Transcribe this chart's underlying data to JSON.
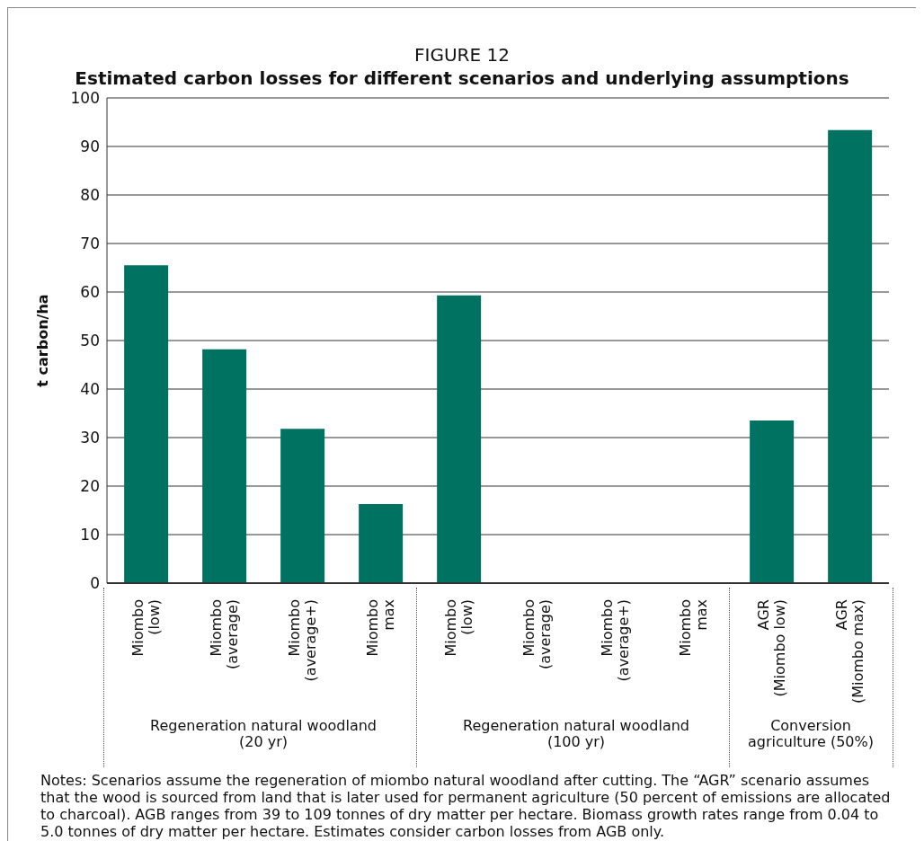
{
  "chart_data": {
    "type": "bar",
    "title": "FIGURE 12",
    "subtitle": "Estimated carbon losses for different scenarios and underlying assumptions",
    "ylabel": "t carbon/ha",
    "categories": [
      "Miombo\n(low)",
      "Miombo\n(average)",
      "Miombo\n(average+)",
      "Miombo\nmax",
      "Miombo\n(low)",
      "Miombo\n(average)",
      "Miombo\n(average+)",
      "Miombo\nmax",
      "AGR\n(Miombo low)",
      "AGR\n(Miombo max)"
    ],
    "values": [
      65.5,
      48.2,
      31.8,
      16.3,
      59.3,
      0,
      0,
      0,
      33.5,
      93.4
    ],
    "color": "#007261",
    "ylim": [
      0,
      100
    ],
    "yticks": [
      0,
      10,
      20,
      30,
      40,
      50,
      60,
      70,
      80,
      90,
      100
    ],
    "grid": "y",
    "legend": false,
    "annotations": [
      "Regeneration natural woodland\n(20 yr)",
      "Regeneration natural woodland\n(100 yr)",
      "Conversion\nagriculture (50%)",
      "Notes: Scenarios assume the regeneration of miombo natural woodland after cutting. The “AGR” scenario assumes that the wood is sourced from land that is later used for permanent agriculture (50 percent of emissions are allocated to charcoal). AGB ranges from 39 to 109 tonnes of dry matter per hectare. Biomass growth rates range from 0.04 to 5.0 tonnes of dry matter per hectare. Estimates consider carbon losses from AGB only."
    ]
  }
}
